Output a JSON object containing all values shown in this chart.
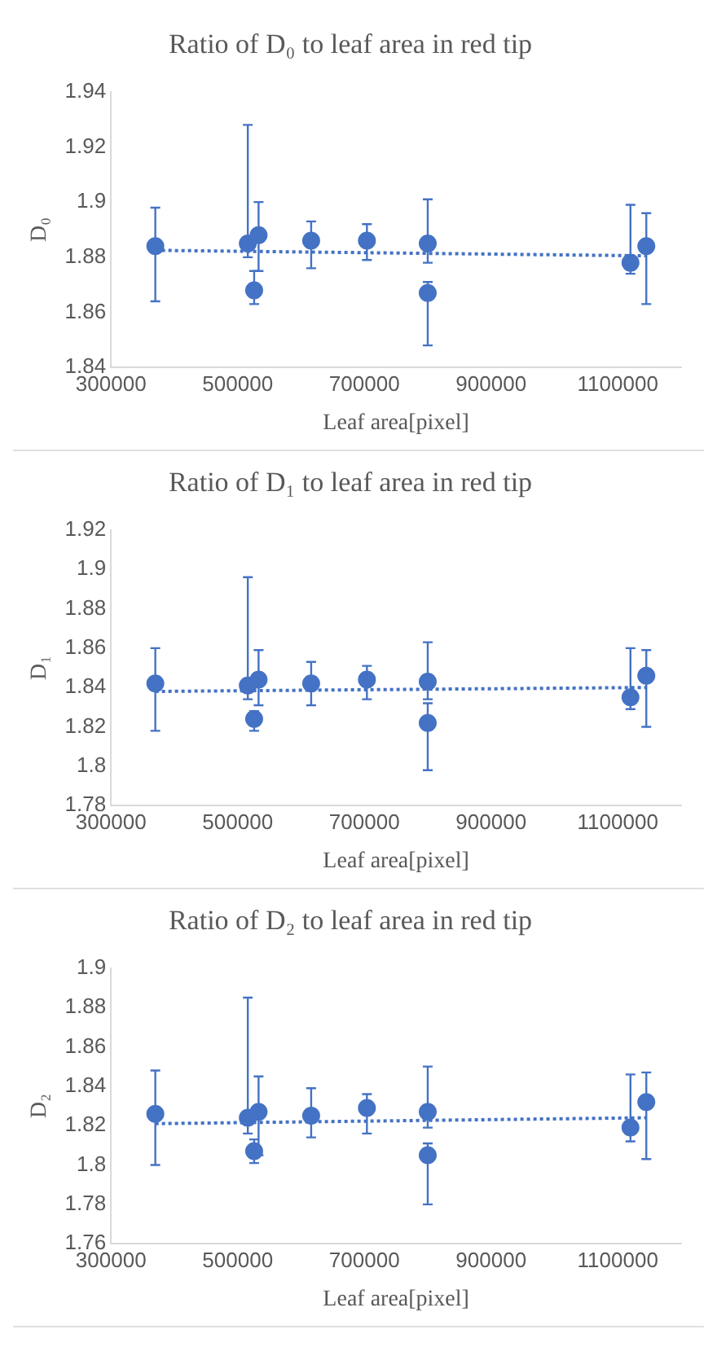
{
  "chart_data": [
    {
      "type": "scatter",
      "title": "Ratio of D₀ to leaf area in red tip",
      "xlabel": "Leaf area[pixel]",
      "ylabel": "D₀",
      "xlim": [
        300000,
        1200000
      ],
      "xticks": [
        300000,
        500000,
        700000,
        900000,
        1100000
      ],
      "ylim": [
        1.84,
        1.94
      ],
      "yticks": [
        1.84,
        1.86,
        1.88,
        1.9,
        1.92,
        1.94
      ],
      "grid": false,
      "legend": false,
      "marker": "circle",
      "series": [
        {
          "type": "scatter",
          "color": "#4472c4",
          "x": [
            370000,
            516000,
            526000,
            533000,
            616000,
            704000,
            800000,
            800000,
            1120000,
            1145000
          ],
          "values": [
            1.884,
            1.885,
            1.868,
            1.888,
            1.886,
            1.886,
            1.885,
            1.867,
            1.878,
            1.884
          ],
          "errors": [
            [
              1.864,
              1.898
            ],
            [
              1.88,
              1.928
            ],
            [
              1.863,
              1.875
            ],
            [
              1.875,
              1.9
            ],
            [
              1.876,
              1.893
            ],
            [
              1.879,
              1.892
            ],
            [
              1.878,
              1.901
            ],
            [
              1.848,
              1.871
            ],
            [
              1.874,
              1.899
            ],
            [
              1.863,
              1.896
            ]
          ]
        },
        {
          "type": "line",
          "color": "#4472c4",
          "line_style": "dotted",
          "marker": "none",
          "x": [
            370000,
            1145000
          ],
          "values": [
            1.8825,
            1.8805
          ]
        }
      ]
    },
    {
      "type": "scatter",
      "title": "Ratio of D₁ to leaf area in red tip",
      "xlabel": "Leaf area[pixel]",
      "ylabel": "D₁",
      "xlim": [
        300000,
        1200000
      ],
      "xticks": [
        300000,
        500000,
        700000,
        900000,
        1100000
      ],
      "ylim": [
        1.78,
        1.92
      ],
      "yticks": [
        1.78,
        1.8,
        1.82,
        1.84,
        1.86,
        1.88,
        1.9,
        1.92
      ],
      "grid": false,
      "legend": false,
      "marker": "circle",
      "series": [
        {
          "type": "scatter",
          "color": "#4472c4",
          "x": [
            370000,
            516000,
            526000,
            533000,
            616000,
            704000,
            800000,
            800000,
            1120000,
            1145000
          ],
          "values": [
            1.842,
            1.841,
            1.824,
            1.844,
            1.842,
            1.844,
            1.843,
            1.822,
            1.835,
            1.846
          ],
          "errors": [
            [
              1.818,
              1.86
            ],
            [
              1.834,
              1.896
            ],
            [
              1.818,
              1.828
            ],
            [
              1.831,
              1.859
            ],
            [
              1.831,
              1.853
            ],
            [
              1.834,
              1.851
            ],
            [
              1.834,
              1.863
            ],
            [
              1.798,
              1.832
            ],
            [
              1.829,
              1.86
            ],
            [
              1.82,
              1.859
            ]
          ]
        },
        {
          "type": "line",
          "color": "#4472c4",
          "line_style": "dotted",
          "marker": "none",
          "x": [
            370000,
            1145000
          ],
          "values": [
            1.838,
            1.84
          ]
        }
      ]
    },
    {
      "type": "scatter",
      "title": "Ratio of D₂ to leaf area in red tip",
      "xlabel": "Leaf area[pixel]",
      "ylabel": "D₂",
      "xlim": [
        300000,
        1200000
      ],
      "xticks": [
        300000,
        500000,
        700000,
        900000,
        1100000
      ],
      "ylim": [
        1.76,
        1.9
      ],
      "yticks": [
        1.76,
        1.78,
        1.8,
        1.82,
        1.84,
        1.86,
        1.88,
        1.9
      ],
      "grid": false,
      "legend": false,
      "marker": "circle",
      "series": [
        {
          "type": "scatter",
          "color": "#4472c4",
          "x": [
            370000,
            516000,
            526000,
            533000,
            616000,
            704000,
            800000,
            800000,
            1120000,
            1145000
          ],
          "values": [
            1.826,
            1.824,
            1.807,
            1.827,
            1.825,
            1.829,
            1.827,
            1.805,
            1.819,
            1.832
          ],
          "errors": [
            [
              1.8,
              1.848
            ],
            [
              1.816,
              1.885
            ],
            [
              1.801,
              1.813
            ],
            [
              1.805,
              1.845
            ],
            [
              1.814,
              1.839
            ],
            [
              1.816,
              1.836
            ],
            [
              1.819,
              1.85
            ],
            [
              1.78,
              1.811
            ],
            [
              1.812,
              1.846
            ],
            [
              1.803,
              1.847
            ]
          ]
        },
        {
          "type": "line",
          "color": "#4472c4",
          "line_style": "dotted",
          "marker": "none",
          "x": [
            370000,
            1145000
          ],
          "values": [
            1.821,
            1.824
          ]
        }
      ]
    }
  ]
}
